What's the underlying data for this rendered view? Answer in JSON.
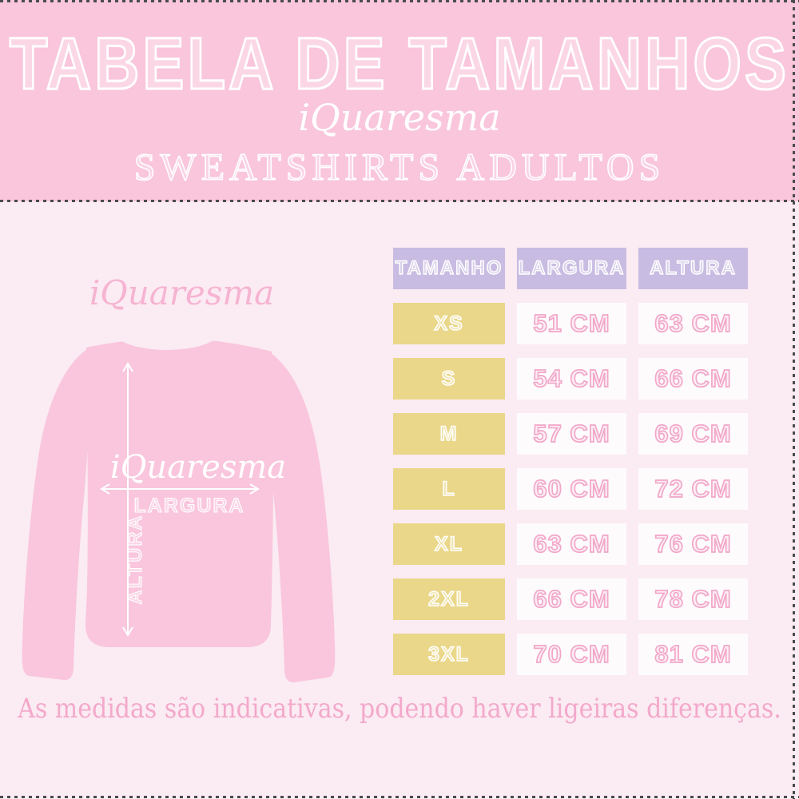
{
  "header": {
    "title": "TABELA DE TAMANHOS",
    "brand": "iQuaresma",
    "subtitle": "SWEATSHIRTS ADULTOS"
  },
  "diagram": {
    "brand_above": "iQuaresma",
    "shirt_brand": "iQuaresma",
    "width_label": "LARGURA",
    "height_label": "ALTURA"
  },
  "size_table": {
    "columns": [
      "TAMANHO",
      "LARGURA",
      "ALTURA"
    ],
    "rows": [
      {
        "size": "XS",
        "width": "51 CM",
        "height": "63 CM"
      },
      {
        "size": "S",
        "width": "54 CM",
        "height": "66 CM"
      },
      {
        "size": "M",
        "width": "57 CM",
        "height": "69 CM"
      },
      {
        "size": "L",
        "width": "60 CM",
        "height": "72 CM"
      },
      {
        "size": "XL",
        "width": "63 CM",
        "height": "76 CM"
      },
      {
        "size": "2XL",
        "width": "66 CM",
        "height": "78 CM"
      },
      {
        "size": "3XL",
        "width": "70 CM",
        "height": "81 CM"
      }
    ]
  },
  "footer": {
    "note": "As medidas são indicativas, podendo haver ligeiras diferenças."
  },
  "colors": {
    "header_background": "#F9C6DC",
    "body_background": "#FBEBF2",
    "table_header": "#C9BCE2",
    "size_cell": "#EAD78A",
    "measure_cell": "#FEFBFD",
    "measure_text": "#F2A7C8",
    "sweatshirt": "#F9C6DD",
    "brand_script": "#F6B4D2",
    "footer_text": "#F3A9CB",
    "dotted_border": "#4B4B4B"
  }
}
